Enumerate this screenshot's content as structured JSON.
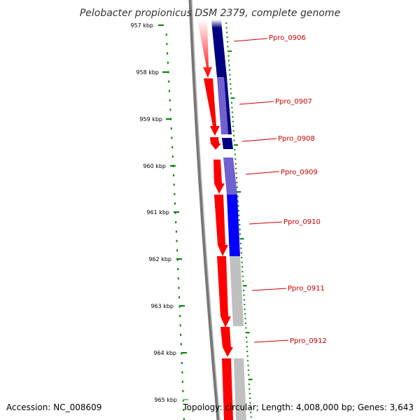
{
  "title": "Pelobacter propionicus DSM 2379, complete genome",
  "footer": {
    "accession": "Accession: NC_008609",
    "topology": "Topology: circular; Length: 4,008,000 bp; Genes: 3,643"
  },
  "ticks": [
    {
      "label": "957 kbp"
    },
    {
      "label": "958 kbp"
    },
    {
      "label": "959 kbp"
    },
    {
      "label": "960 kbp"
    },
    {
      "label": "961 kbp"
    },
    {
      "label": "962 kbp"
    },
    {
      "label": "963 kbp"
    },
    {
      "label": "964 kbp"
    },
    {
      "label": "965 kbp"
    }
  ],
  "genes": [
    {
      "name": "Ppro_0906"
    },
    {
      "name": "Ppro_0907"
    },
    {
      "name": "Ppro_0908"
    },
    {
      "name": "Ppro_0909"
    },
    {
      "name": "Ppro_0910"
    },
    {
      "name": "Ppro_0911"
    },
    {
      "name": "Ppro_0912"
    }
  ],
  "colors": {
    "gene_arrow": "#ff0000",
    "gene_label": "#cc0000",
    "tick": "#008000",
    "backbone": "#777777",
    "homology_dark": "#000080",
    "homology_mid": "#7060d0",
    "homology_blue": "#0000ff",
    "homology_gray": "#c0c0c0"
  }
}
